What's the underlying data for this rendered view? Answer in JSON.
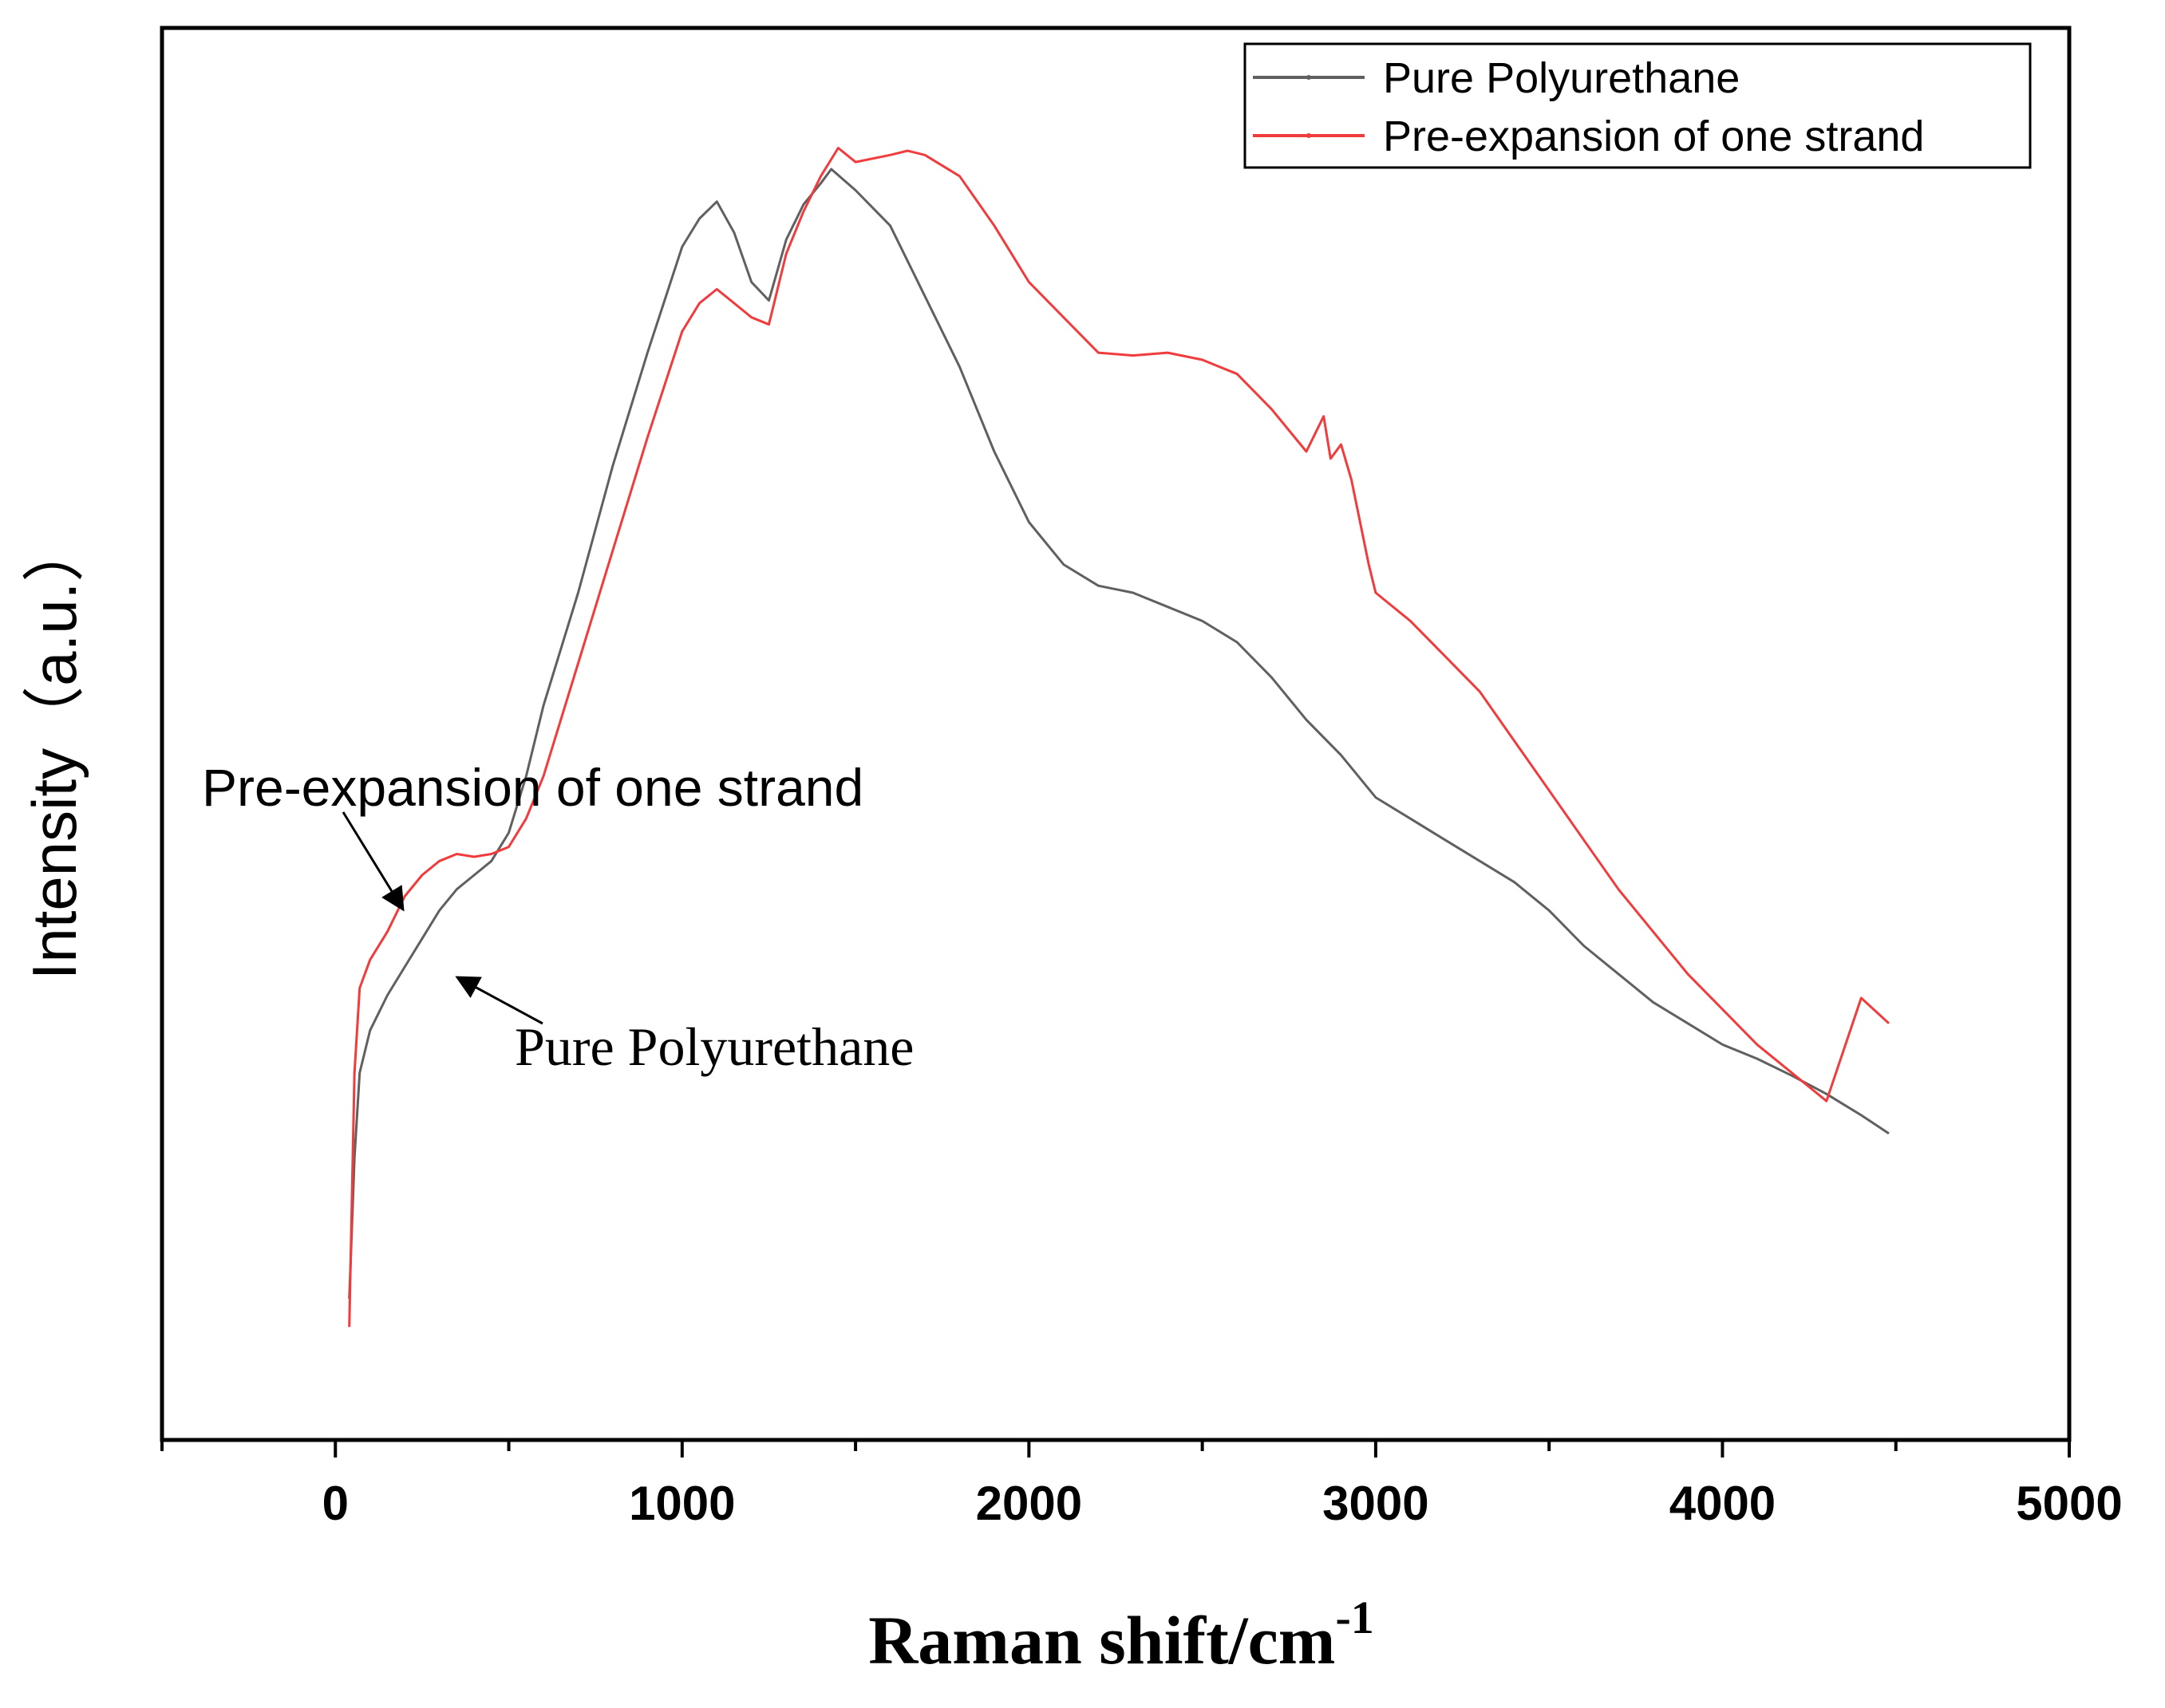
{
  "chart_data": {
    "type": "line",
    "title": "",
    "xlabel": "Raman shift/cm",
    "xlabel_superscript": "-1",
    "ylabel": "Intensity（a.u.）",
    "xlim": [
      -500,
      5000
    ],
    "ylim": [
      0,
      100
    ],
    "x_ticks": [
      0,
      1000,
      2000,
      3000,
      4000,
      5000
    ],
    "x_tick_labels": [
      "0",
      "1000",
      "2000",
      "3000",
      "4000",
      "5000"
    ],
    "y_ticks_visible": false,
    "legend_position": "top-right",
    "series": [
      {
        "name": "Pure Polyurethane",
        "color": "#606060",
        "x": [
          40,
          55,
          70,
          100,
          150,
          200,
          250,
          300,
          350,
          400,
          450,
          500,
          550,
          600,
          700,
          800,
          900,
          1000,
          1050,
          1100,
          1150,
          1200,
          1250,
          1300,
          1350,
          1400,
          1430,
          1500,
          1600,
          1700,
          1800,
          1900,
          2000,
          2100,
          2200,
          2300,
          2400,
          2500,
          2600,
          2700,
          2800,
          2900,
          3000,
          3100,
          3200,
          3300,
          3400,
          3500,
          3600,
          3700,
          3800,
          3900,
          4000,
          4100,
          4200,
          4300,
          4400,
          4480
        ],
        "y": [
          10,
          20,
          26,
          29,
          31.5,
          33.5,
          35.5,
          37.5,
          39,
          40,
          41,
          43,
          47,
          52,
          60,
          69,
          77,
          84.5,
          86.5,
          87.7,
          85.5,
          82,
          80.7,
          85,
          87.5,
          89,
          90,
          88.5,
          86,
          81,
          76,
          70,
          65,
          62,
          60.5,
          60,
          59,
          58,
          56.5,
          54,
          51,
          48.5,
          45.5,
          44,
          42.5,
          41,
          39.5,
          37.5,
          35,
          33,
          31,
          29.5,
          28,
          27,
          25.8,
          24.5,
          23,
          21.7
        ],
        "lw": 3
      },
      {
        "name": "Pre-expansion of one strand",
        "color": "#f03c3c",
        "x": [
          40,
          55,
          70,
          100,
          150,
          200,
          250,
          300,
          350,
          400,
          450,
          500,
          550,
          600,
          700,
          800,
          900,
          1000,
          1050,
          1100,
          1150,
          1200,
          1250,
          1300,
          1350,
          1400,
          1450,
          1500,
          1600,
          1650,
          1700,
          1800,
          1900,
          2000,
          2100,
          2200,
          2300,
          2400,
          2500,
          2600,
          2700,
          2800,
          2850,
          2870,
          2900,
          2930,
          2980,
          3000,
          3100,
          3200,
          3300,
          3400,
          3500,
          3600,
          3700,
          3800,
          3900,
          4000,
          4100,
          4200,
          4300,
          4400,
          4480
        ],
        "y": [
          8,
          26,
          32,
          34,
          36,
          38.5,
          40,
          41,
          41.5,
          41.3,
          41.5,
          42,
          44,
          47,
          55,
          63,
          71,
          78.5,
          80.5,
          81.5,
          80.5,
          79.5,
          79,
          84,
          87,
          89.5,
          91.5,
          90.5,
          91,
          91.3,
          91,
          89.5,
          86,
          82,
          79.5,
          77,
          76.8,
          77,
          76.5,
          75.5,
          73,
          70,
          72.5,
          69.5,
          70.5,
          68,
          62,
          60,
          58,
          55.5,
          53,
          49.5,
          46,
          42.5,
          39,
          36,
          33,
          30.5,
          28,
          26,
          24,
          31.3,
          29.5
        ],
        "lw": 3
      }
    ],
    "annotations": [
      {
        "text": "Pre-expansion of one strand",
        "style": "sans",
        "points_to_x": 200,
        "points_to_y": 42
      },
      {
        "text": "Pure Polyurethane",
        "style": "serif",
        "points_to_x": 360,
        "points_to_y": 38
      }
    ]
  }
}
